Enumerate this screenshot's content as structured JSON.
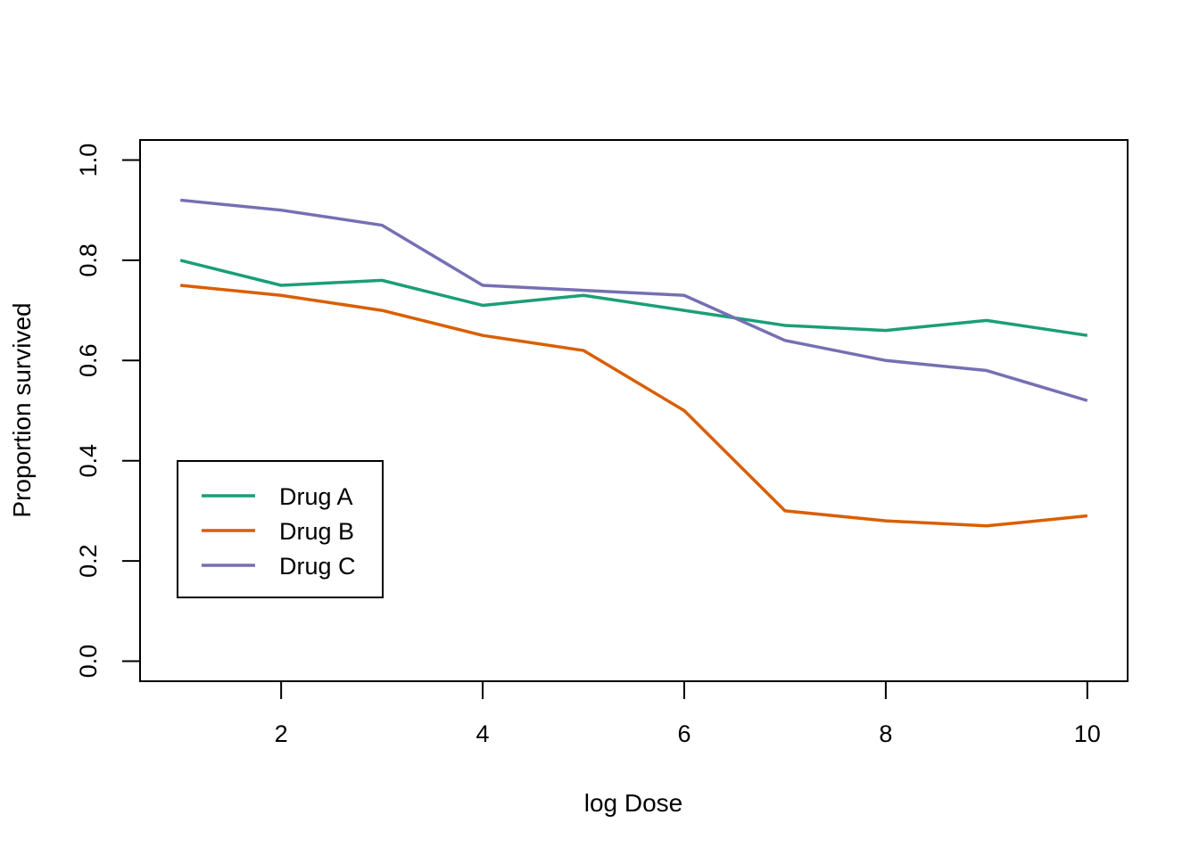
{
  "chart_data": {
    "type": "line",
    "title": "",
    "xlabel": "log Dose",
    "ylabel": "Proportion survived",
    "x": [
      1,
      2,
      3,
      4,
      5,
      6,
      7,
      8,
      9,
      10
    ],
    "xlim": [
      0.6,
      10.4
    ],
    "ylim": [
      -0.04,
      1.04
    ],
    "xticks": [
      2,
      4,
      6,
      8,
      10
    ],
    "yticks": [
      0.0,
      0.2,
      0.4,
      0.6,
      0.8,
      1.0
    ],
    "xtick_labels": [
      "2",
      "4",
      "6",
      "8",
      "10"
    ],
    "ytick_labels": [
      "0.0",
      "0.2",
      "0.4",
      "0.6",
      "0.8",
      "1.0"
    ],
    "grid": false,
    "legend_position": "bottom-left",
    "series": [
      {
        "name": "Drug A",
        "color": "#1b9e77",
        "values": [
          0.8,
          0.75,
          0.76,
          0.71,
          0.73,
          0.7,
          0.67,
          0.66,
          0.68,
          0.65
        ]
      },
      {
        "name": "Drug B",
        "color": "#d95f02",
        "values": [
          0.75,
          0.73,
          0.7,
          0.65,
          0.62,
          0.5,
          0.3,
          0.28,
          0.27,
          0.29
        ]
      },
      {
        "name": "Drug C",
        "color": "#7570b3",
        "values": [
          0.92,
          0.9,
          0.87,
          0.75,
          0.74,
          0.73,
          0.64,
          0.6,
          0.58,
          0.52
        ]
      }
    ]
  }
}
